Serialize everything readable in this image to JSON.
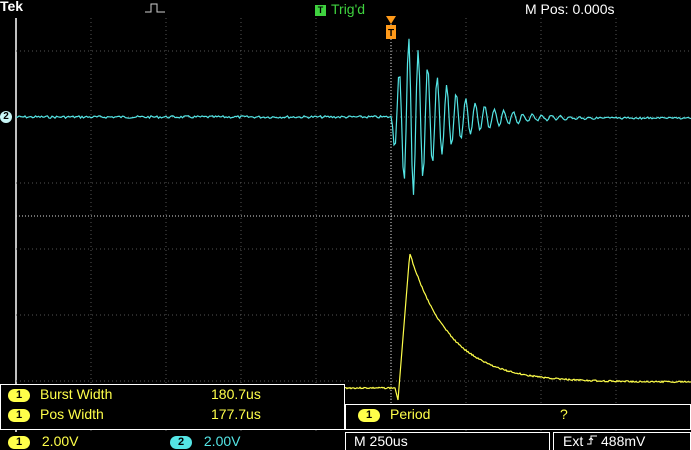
{
  "header": {
    "brand": "Tek",
    "trigger_icon_letter": "T",
    "trigger_status": "Trig'd",
    "main_position": "M Pos: 0.000s"
  },
  "channel2_marker": "2",
  "measurements": {
    "left": [
      {
        "channel": "1",
        "name": "Burst Width",
        "value": "180.7us"
      },
      {
        "channel": "1",
        "name": "Pos Width",
        "value": "177.7us"
      }
    ],
    "right": [
      {
        "channel": "1",
        "name": "Period",
        "value": "?"
      }
    ]
  },
  "status_bar": {
    "ch1_badge": "1",
    "ch1_scale": "2.00V",
    "ch2_badge": "2",
    "ch2_scale": "2.00V",
    "timebase": "M 250us",
    "trigger_source": "Ext",
    "trigger_slope_icon": "rising-edge-icon",
    "trigger_level": "488mV"
  },
  "colors": {
    "ch1": "#ffff4a",
    "ch2": "#54e5e5",
    "trigger": "#ff9a1a",
    "trig_status": "#3fd23f"
  }
}
